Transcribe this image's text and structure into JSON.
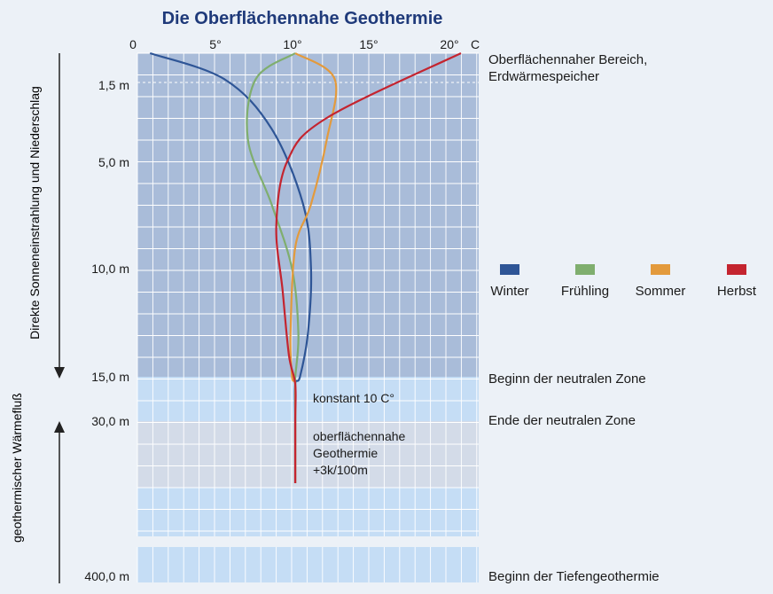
{
  "chart_data": {
    "type": "line",
    "title": "Die Oberflächennahe Geothermie",
    "x_ticks": [
      "0",
      "5°",
      "10°",
      "15°",
      "20°"
    ],
    "x_unit": "C",
    "xlim": [
      0,
      21
    ],
    "y_ticks": [
      "1,5 m",
      "5,0 m",
      "10,0 m",
      "15,0 m",
      "30,0 m",
      "400,0 m"
    ],
    "ylabel_top": "Direkte Sonneneinstrahlung und Niederschlag",
    "ylabel_bottom": "geothermischer Wärmefluß",
    "right_labels": {
      "surface": "Oberflächennaher Bereich,",
      "surface2": "Erdwärmespeicher",
      "neutral_start": "Beginn der neutralen Zone",
      "neutral_end": "Ende der neutralen Zone",
      "deep": "Beginn der Tiefengeothermie"
    },
    "annotations": {
      "constant": "konstant 10 C°",
      "geo1": "oberflächennahe",
      "geo2": "Geothermie",
      "geo3": "+3k/100m"
    },
    "series": [
      {
        "name": "Winter",
        "color": "#2e5596",
        "points": [
          [
            0.8,
            0
          ],
          [
            5.5,
            1.2
          ],
          [
            8.5,
            3.5
          ],
          [
            10.5,
            7
          ],
          [
            11,
            10
          ],
          [
            10.8,
            13
          ],
          [
            10.3,
            15
          ],
          [
            10,
            17.5
          ],
          [
            10,
            30
          ],
          [
            10,
            35
          ]
        ]
      },
      {
        "name": "Frühling",
        "color": "#7fae6e",
        "points": [
          [
            10,
            0
          ],
          [
            7.5,
            1.2
          ],
          [
            7,
            4
          ],
          [
            8.5,
            7
          ],
          [
            9.8,
            10
          ],
          [
            10.2,
            13
          ],
          [
            10,
            15
          ],
          [
            10,
            17.5
          ],
          [
            10,
            30
          ],
          [
            10,
            35
          ]
        ]
      },
      {
        "name": "Sommer",
        "color": "#e39a3c",
        "points": [
          [
            10,
            0
          ],
          [
            12.5,
            1.2
          ],
          [
            12,
            4
          ],
          [
            11,
            7
          ],
          [
            10,
            9
          ],
          [
            9.7,
            13
          ],
          [
            9.8,
            15
          ],
          [
            10,
            17.5
          ],
          [
            10,
            30
          ],
          [
            10,
            35
          ]
        ]
      },
      {
        "name": "Herbst",
        "color": "#c4242f",
        "points": [
          [
            20.5,
            0
          ],
          [
            12,
            3
          ],
          [
            9.5,
            5
          ],
          [
            8.8,
            8
          ],
          [
            9.2,
            11
          ],
          [
            9.6,
            14
          ],
          [
            10,
            17.5
          ],
          [
            10,
            30
          ],
          [
            10,
            35
          ]
        ]
      }
    ]
  }
}
